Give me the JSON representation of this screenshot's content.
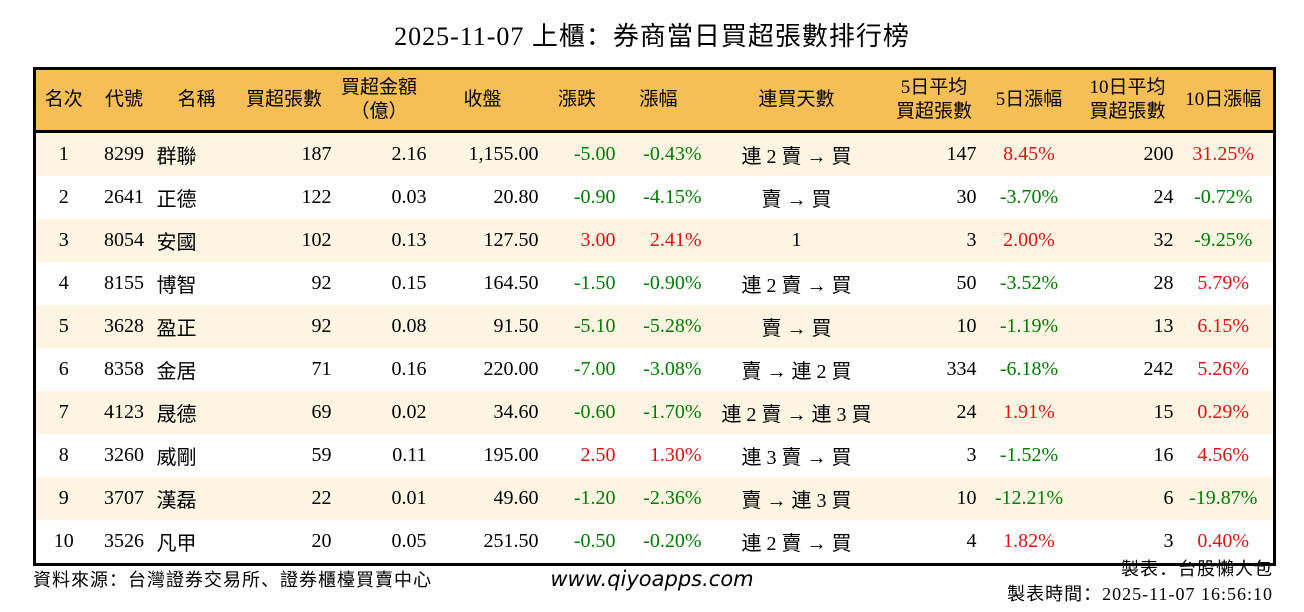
{
  "title": "2025-11-07 上櫃：券商當日買超張數排行榜",
  "colors": {
    "header_bg": "#F5BF55",
    "row_alt_bg": "#FDF5E2",
    "up_red": "#DE1313",
    "down_green": "#007D00"
  },
  "table": {
    "columns": [
      {
        "key": "rank",
        "label": "名次",
        "align": "c",
        "signed": false
      },
      {
        "key": "code",
        "label": "代號",
        "align": "c",
        "signed": false
      },
      {
        "key": "name",
        "label": "名稱",
        "align": "l",
        "signed": false
      },
      {
        "key": "net_buy",
        "label": "買超張數",
        "align": "r",
        "signed": false
      },
      {
        "key": "amount",
        "label": "買超金額\n（億）",
        "align": "r",
        "signed": false
      },
      {
        "key": "close",
        "label": "收盤",
        "align": "r",
        "signed": false
      },
      {
        "key": "change",
        "label": "漲跌",
        "align": "r",
        "signed": true
      },
      {
        "key": "change_pct",
        "label": "漲幅",
        "align": "r",
        "signed": true
      },
      {
        "key": "streak",
        "label": "連買天數",
        "align": "c",
        "signed": false
      },
      {
        "key": "avg5",
        "label": "5日平均\n買超張數",
        "align": "r",
        "signed": false
      },
      {
        "key": "pct5",
        "label": "5日漲幅",
        "align": "c",
        "signed": true
      },
      {
        "key": "avg10",
        "label": "10日平均\n買超張數",
        "align": "r",
        "signed": false
      },
      {
        "key": "pct10",
        "label": "10日漲幅",
        "align": "c",
        "signed": true
      }
    ],
    "rows": [
      {
        "rank": "1",
        "code": "8299",
        "name": "群聯",
        "net_buy": "187",
        "amount": "2.16",
        "close": "1,155.00",
        "change": "-5.00",
        "change_pct": "-0.43%",
        "streak": "連 2 賣 → 買",
        "avg5": "147",
        "pct5": "8.45%",
        "avg10": "200",
        "pct10": "31.25%"
      },
      {
        "rank": "2",
        "code": "2641",
        "name": "正德",
        "net_buy": "122",
        "amount": "0.03",
        "close": "20.80",
        "change": "-0.90",
        "change_pct": "-4.15%",
        "streak": "賣 → 買",
        "avg5": "30",
        "pct5": "-3.70%",
        "avg10": "24",
        "pct10": "-0.72%"
      },
      {
        "rank": "3",
        "code": "8054",
        "name": "安國",
        "net_buy": "102",
        "amount": "0.13",
        "close": "127.50",
        "change": "3.00",
        "change_pct": "2.41%",
        "streak": "1",
        "avg5": "3",
        "pct5": "2.00%",
        "avg10": "32",
        "pct10": "-9.25%"
      },
      {
        "rank": "4",
        "code": "8155",
        "name": "博智",
        "net_buy": "92",
        "amount": "0.15",
        "close": "164.50",
        "change": "-1.50",
        "change_pct": "-0.90%",
        "streak": "連 2 賣 → 買",
        "avg5": "50",
        "pct5": "-3.52%",
        "avg10": "28",
        "pct10": "5.79%"
      },
      {
        "rank": "5",
        "code": "3628",
        "name": "盈正",
        "net_buy": "92",
        "amount": "0.08",
        "close": "91.50",
        "change": "-5.10",
        "change_pct": "-5.28%",
        "streak": "賣 → 買",
        "avg5": "10",
        "pct5": "-1.19%",
        "avg10": "13",
        "pct10": "6.15%"
      },
      {
        "rank": "6",
        "code": "8358",
        "name": "金居",
        "net_buy": "71",
        "amount": "0.16",
        "close": "220.00",
        "change": "-7.00",
        "change_pct": "-3.08%",
        "streak": "賣 → 連 2 買",
        "avg5": "334",
        "pct5": "-6.18%",
        "avg10": "242",
        "pct10": "5.26%"
      },
      {
        "rank": "7",
        "code": "4123",
        "name": "晟德",
        "net_buy": "69",
        "amount": "0.02",
        "close": "34.60",
        "change": "-0.60",
        "change_pct": "-1.70%",
        "streak": "連 2 賣 → 連 3 買",
        "avg5": "24",
        "pct5": "1.91%",
        "avg10": "15",
        "pct10": "0.29%"
      },
      {
        "rank": "8",
        "code": "3260",
        "name": "威剛",
        "net_buy": "59",
        "amount": "0.11",
        "close": "195.00",
        "change": "2.50",
        "change_pct": "1.30%",
        "streak": "連 3 賣 → 買",
        "avg5": "3",
        "pct5": "-1.52%",
        "avg10": "16",
        "pct10": "4.56%"
      },
      {
        "rank": "9",
        "code": "3707",
        "name": "漢磊",
        "net_buy": "22",
        "amount": "0.01",
        "close": "49.60",
        "change": "-1.20",
        "change_pct": "-2.36%",
        "streak": "賣 → 連 3 買",
        "avg5": "10",
        "pct5": "-12.21%",
        "avg10": "6",
        "pct10": "-19.87%"
      },
      {
        "rank": "10",
        "code": "3526",
        "name": "凡甲",
        "net_buy": "20",
        "amount": "0.05",
        "close": "251.50",
        "change": "-0.50",
        "change_pct": "-0.20%",
        "streak": "連 2 賣 → 買",
        "avg5": "4",
        "pct5": "1.82%",
        "avg10": "3",
        "pct10": "0.40%"
      }
    ]
  },
  "footer": {
    "source": "資料來源：台灣證券交易所、證券櫃檯買賣中心",
    "website": "www.qiyoapps.com",
    "maker": "製表：台股懶人包",
    "made_time": "製表時間：2025-11-07 16:56:10"
  }
}
